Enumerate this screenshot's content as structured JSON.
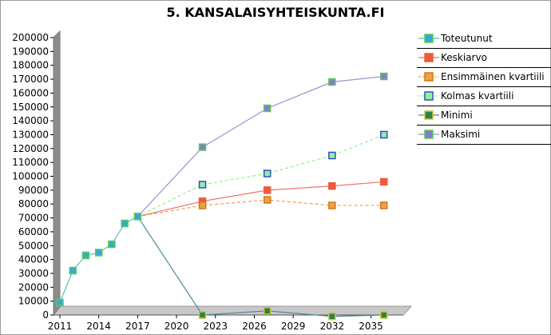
{
  "chart_data": {
    "type": "line",
    "title": "5. KANSALAISYHTEISKUNTA.FI",
    "x_ticks": [
      2011,
      2014,
      2017,
      2020,
      2023,
      2026,
      2029,
      2032,
      2035
    ],
    "xlim": [
      2011,
      2037
    ],
    "y_ticks": [
      0,
      10000,
      20000,
      30000,
      40000,
      50000,
      60000,
      70000,
      80000,
      90000,
      100000,
      110000,
      120000,
      130000,
      140000,
      150000,
      160000,
      170000,
      180000,
      190000,
      200000
    ],
    "ylim": [
      0,
      200000
    ],
    "legend_position": "right",
    "series": [
      {
        "name": "Toteutunut",
        "color": "#5cc0b8",
        "marker_fill": "#3aa6d6",
        "marker_edge": "#55cc55",
        "dashed": false,
        "x": [
          2011,
          2012,
          2013,
          2014,
          2015,
          2016,
          2017
        ],
        "y": [
          9000,
          32000,
          43000,
          45000,
          51000,
          66000,
          71000
        ]
      },
      {
        "name": "Keskiarvo",
        "color": "#f07070",
        "marker_fill": "#ee5a3c",
        "marker_edge": "#ee5a3c",
        "dashed": false,
        "x": [
          2017,
          2022,
          2027,
          2032,
          2036
        ],
        "y": [
          71000,
          82000,
          90000,
          93000,
          96000
        ]
      },
      {
        "name": "Ensimmäinen kvartiili",
        "color": "#f0a040",
        "marker_fill": "#f0a040",
        "marker_edge": "#d07820",
        "dashed": true,
        "x": [
          2017,
          2022,
          2027,
          2032,
          2036
        ],
        "y": [
          71000,
          79000,
          83000,
          79000,
          79000
        ]
      },
      {
        "name": "Kolmas kvartiili",
        "color": "#90f090",
        "marker_fill": "#90f0a0",
        "marker_edge": "#3050c0",
        "dashed": true,
        "x": [
          2017,
          2022,
          2027,
          2032,
          2036
        ],
        "y": [
          71000,
          94000,
          102000,
          115000,
          130000
        ]
      },
      {
        "name": "Minimi",
        "color": "#4a8a9a",
        "marker_fill": "#2f7f4f",
        "marker_edge": "#c8c830",
        "dashed": false,
        "x": [
          2017,
          2022,
          2027,
          2032,
          2036
        ],
        "y": [
          71000,
          0,
          3000,
          -1000,
          0
        ]
      },
      {
        "name": "Maksimi",
        "color": "#9a90d0",
        "marker_fill": "#8a7ad0",
        "marker_edge": "#55cc55",
        "dashed": false,
        "x": [
          2017,
          2022,
          2027,
          2032,
          2036
        ],
        "y": [
          71000,
          121000,
          149000,
          168000,
          172000
        ]
      }
    ]
  }
}
